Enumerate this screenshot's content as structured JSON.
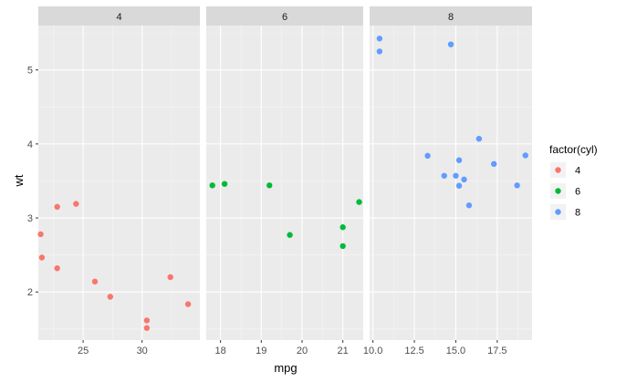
{
  "chart_data": {
    "type": "scatter",
    "title": "",
    "xlabel": "mpg",
    "ylabel": "wt",
    "facet_by": "cyl",
    "grid": true,
    "legend": {
      "title": "factor(cyl)",
      "placement": "right",
      "items": [
        {
          "label": "4",
          "color": "#F8766D"
        },
        {
          "label": "6",
          "color": "#00BA38"
        },
        {
          "label": "8",
          "color": "#619CFF"
        }
      ]
    },
    "y_axis": {
      "range": [
        1.35,
        5.6
      ],
      "ticks": [
        2,
        3,
        4,
        5
      ],
      "tick_labels": [
        "2",
        "3",
        "4",
        "5"
      ]
    },
    "panels": [
      {
        "strip": "4",
        "color": "#F8766D",
        "xlim": [
          21.2,
          34.9
        ],
        "x_ticks": [
          25,
          30
        ],
        "x_tick_labels": [
          "25",
          "30"
        ],
        "points": [
          {
            "x": 22.8,
            "y": 2.32
          },
          {
            "x": 24.4,
            "y": 3.19
          },
          {
            "x": 22.8,
            "y": 3.15
          },
          {
            "x": 32.4,
            "y": 2.2
          },
          {
            "x": 30.4,
            "y": 1.615
          },
          {
            "x": 33.9,
            "y": 1.835
          },
          {
            "x": 21.5,
            "y": 2.465
          },
          {
            "x": 27.3,
            "y": 1.935
          },
          {
            "x": 26.0,
            "y": 2.14
          },
          {
            "x": 30.4,
            "y": 1.513
          },
          {
            "x": 21.4,
            "y": 2.78
          }
        ]
      },
      {
        "strip": "6",
        "color": "#00BA38",
        "xlim": [
          17.65,
          21.5
        ],
        "x_ticks": [
          18,
          19,
          20,
          21
        ],
        "x_tick_labels": [
          "18",
          "19",
          "20",
          "21"
        ],
        "points": [
          {
            "x": 21.0,
            "y": 2.62
          },
          {
            "x": 21.0,
            "y": 2.875
          },
          {
            "x": 21.4,
            "y": 3.215
          },
          {
            "x": 18.1,
            "y": 3.46
          },
          {
            "x": 19.2,
            "y": 3.44
          },
          {
            "x": 17.8,
            "y": 3.44
          },
          {
            "x": 19.7,
            "y": 2.77
          }
        ]
      },
      {
        "strip": "8",
        "color": "#619CFF",
        "xlim": [
          9.8,
          19.6
        ],
        "x_ticks": [
          10.0,
          12.5,
          15.0,
          17.5
        ],
        "x_tick_labels": [
          "10.0",
          "12.5",
          "15.0",
          "17.5"
        ],
        "points": [
          {
            "x": 18.7,
            "y": 3.44
          },
          {
            "x": 14.3,
            "y": 3.57
          },
          {
            "x": 16.4,
            "y": 4.07
          },
          {
            "x": 17.3,
            "y": 3.73
          },
          {
            "x": 15.2,
            "y": 3.78
          },
          {
            "x": 10.4,
            "y": 5.25
          },
          {
            "x": 10.4,
            "y": 5.424
          },
          {
            "x": 14.7,
            "y": 5.345
          },
          {
            "x": 15.5,
            "y": 3.52
          },
          {
            "x": 15.2,
            "y": 3.435
          },
          {
            "x": 13.3,
            "y": 3.84
          },
          {
            "x": 19.2,
            "y": 3.845
          },
          {
            "x": 15.8,
            "y": 3.17
          },
          {
            "x": 15.0,
            "y": 3.57
          }
        ]
      }
    ]
  }
}
